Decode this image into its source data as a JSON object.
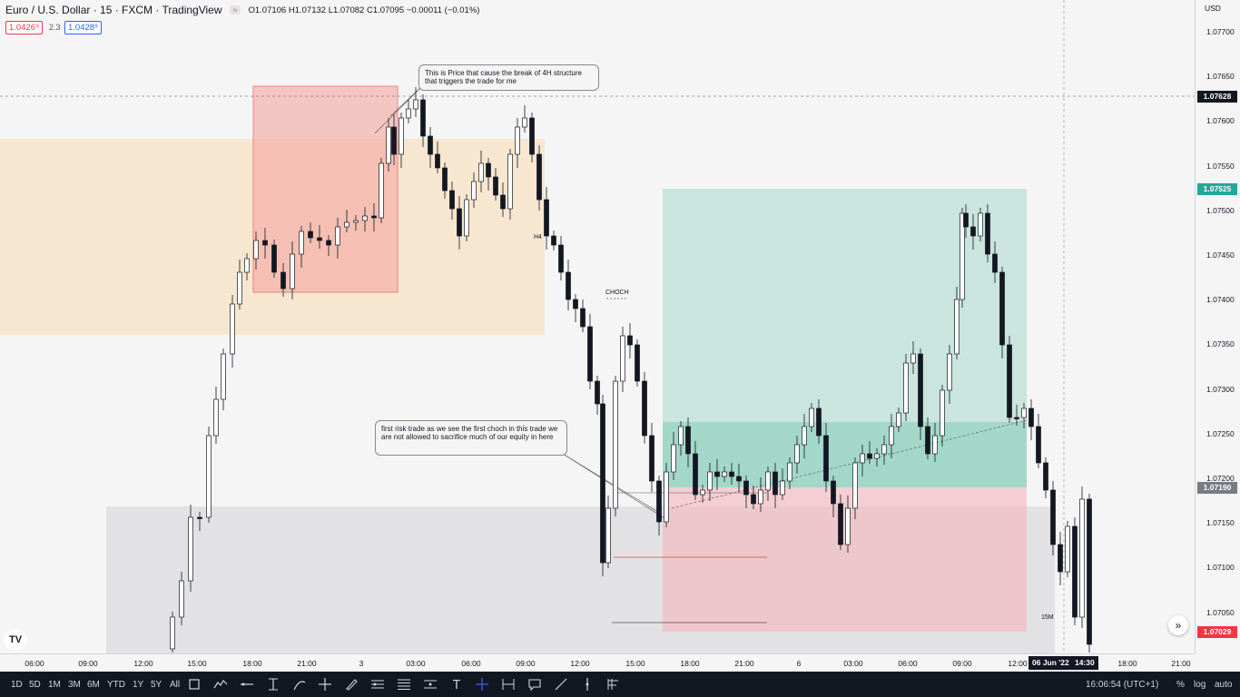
{
  "header": {
    "symbol_title": "Euro / U.S. Dollar · 15 · FXCM · TradingView",
    "pill": "≈",
    "ohlc": "O1.07106 H1.07132 L1.07082 C1.07095 −0.00011 (−0.01%)",
    "sell_price": "1.0426⁹",
    "spread": "2.3",
    "buy_price": "1.0428⁹"
  },
  "y_axis": {
    "currency": "USD",
    "labels": [
      "1.07700",
      "1.07650",
      "1.07600",
      "1.07550",
      "1.07500",
      "1.07450",
      "1.07400",
      "1.07350",
      "1.07300",
      "1.07250",
      "1.07200",
      "1.07150",
      "1.07100",
      "1.07050"
    ],
    "tags": [
      {
        "value": "1.07628",
        "color": "#131722"
      },
      {
        "value": "1.07525",
        "color": "#26a69a"
      },
      {
        "value": "1.07190",
        "color": "#787b86"
      },
      {
        "value": "1.07029",
        "color": "#f23645"
      }
    ]
  },
  "x_axis": {
    "labels": [
      "06:00",
      "09:00",
      "12:00",
      "15:00",
      "18:00",
      "21:00",
      "3",
      "03:00",
      "06:00",
      "09:00",
      "12:00",
      "15:00",
      "18:00",
      "21:00",
      "6",
      "03:00",
      "06:00",
      "09:00",
      "12:00",
      "18:00",
      "21:00"
    ],
    "date_tag": "06 Jun '22",
    "time_tag": "14:30"
  },
  "annotations": {
    "note1": "This is Price that cause the break of 4H structure that triggers the trade  for me",
    "note2": "first risk trade as we see the first choch in this trade we are not allowed to sacrifice much of our equity in here",
    "h4": "H4",
    "choch": "CHOCH",
    "m15": "15M"
  },
  "bottom_bar": {
    "ranges": [
      "1D",
      "5D",
      "1M",
      "3M",
      "6M",
      "YTD",
      "1Y",
      "5Y",
      "All"
    ],
    "clock": "16:06:54 (UTC+1)",
    "percent": "%",
    "log": "log",
    "auto": "auto"
  },
  "tools": [
    "rectangle-icon",
    "path-icon",
    "horizontal-ray-icon",
    "anchored-text-icon",
    "curve-icon",
    "crosshair-icon",
    "brush-icon",
    "fib-channel-icon",
    "fib-retracement-icon",
    "parallel-channel-icon",
    "text-icon",
    "cursor-cross-icon",
    "date-range-icon",
    "callout-icon",
    "trend-line-icon",
    "vertical-line-icon",
    "fib-timezone-icon"
  ],
  "colors": {
    "up": "#ffffff",
    "down": "#131722",
    "supply_zone": "#f7e4c9",
    "demand_zone": "#e0e0e3",
    "red_box": "#f2b6b6",
    "target_zone": "#cde5de",
    "stop_zone": "#f0c8cc"
  }
}
